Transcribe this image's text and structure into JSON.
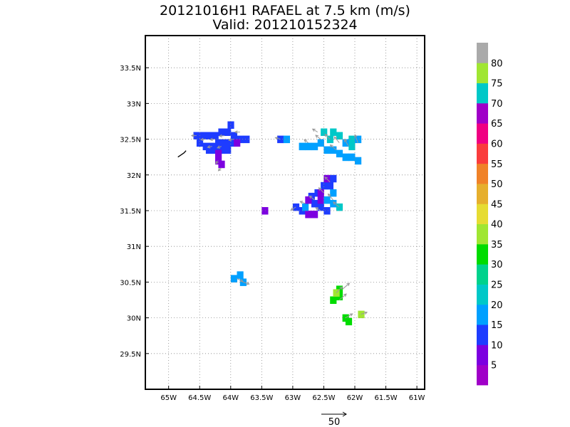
{
  "title": "20121016H1 RAFAEL at 7.5 km (m/s)",
  "subtitle": "Valid: 201210152324",
  "reference_vector": {
    "label": "50",
    "value": 50
  },
  "chart_data": {
    "type": "heatmap",
    "title": "20121016H1 RAFAEL at 7.5 km (m/s)",
    "subtitle": "Valid: 201210152324",
    "xlabel": "",
    "ylabel": "",
    "xlim": [
      -65.375,
      -60.875
    ],
    "ylim": [
      29.0,
      33.95
    ],
    "grid": true,
    "x_ticks": [
      {
        "v": -65.0,
        "label": "65W"
      },
      {
        "v": -64.5,
        "label": "64.5W"
      },
      {
        "v": -64.0,
        "label": "64W"
      },
      {
        "v": -63.5,
        "label": "63.5W"
      },
      {
        "v": -63.0,
        "label": "63W"
      },
      {
        "v": -62.5,
        "label": "62.5W"
      },
      {
        "v": -62.0,
        "label": "62W"
      },
      {
        "v": -61.5,
        "label": "61.5W"
      },
      {
        "v": -61.0,
        "label": "61W"
      }
    ],
    "y_ticks": [
      {
        "v": 29.5,
        "label": "29.5N"
      },
      {
        "v": 30.0,
        "label": "30N"
      },
      {
        "v": 30.5,
        "label": "30.5N"
      },
      {
        "v": 31.0,
        "label": "31N"
      },
      {
        "v": 31.5,
        "label": "31.5N"
      },
      {
        "v": 32.0,
        "label": "32N"
      },
      {
        "v": 32.5,
        "label": "32.5N"
      },
      {
        "v": 33.0,
        "label": "33N"
      },
      {
        "v": 33.5,
        "label": "33.5N"
      }
    ],
    "colorbar": {
      "labels": [
        "5",
        "10",
        "15",
        "20",
        "25",
        "30",
        "35",
        "40",
        "45",
        "50",
        "55",
        "60",
        "65",
        "70",
        "75",
        "80"
      ],
      "colors": [
        "#a000c8",
        "#7c00e0",
        "#1e3cff",
        "#00a0ff",
        "#00c8c8",
        "#00d28c",
        "#00dc00",
        "#a0e632",
        "#e6dc32",
        "#e6af2d",
        "#f08228",
        "#fa3c3c",
        "#f00082",
        "#a000c8",
        "#00c8c8",
        "#a0e632",
        "#aaaaaa"
      ]
    },
    "cells": [
      {
        "lon": -64.55,
        "lat": 32.55,
        "v": 15
      },
      {
        "lon": -64.45,
        "lat": 32.55,
        "v": 15
      },
      {
        "lon": -64.35,
        "lat": 32.55,
        "v": 15
      },
      {
        "lon": -64.25,
        "lat": 32.55,
        "v": 15
      },
      {
        "lon": -64.15,
        "lat": 32.6,
        "v": 15
      },
      {
        "lon": -64.05,
        "lat": 32.6,
        "v": 15
      },
      {
        "lon": -63.95,
        "lat": 32.55,
        "v": 15
      },
      {
        "lon": -63.85,
        "lat": 32.5,
        "v": 15
      },
      {
        "lon": -63.75,
        "lat": 32.5,
        "v": 15
      },
      {
        "lon": -64.5,
        "lat": 32.45,
        "v": 15
      },
      {
        "lon": -64.4,
        "lat": 32.4,
        "v": 15
      },
      {
        "lon": -64.3,
        "lat": 32.4,
        "v": 15
      },
      {
        "lon": -64.2,
        "lat": 32.45,
        "v": 15
      },
      {
        "lon": -64.1,
        "lat": 32.45,
        "v": 15
      },
      {
        "lon": -64.0,
        "lat": 32.45,
        "v": 15
      },
      {
        "lon": -63.9,
        "lat": 32.45,
        "v": 10
      },
      {
        "lon": -64.35,
        "lat": 32.35,
        "v": 15
      },
      {
        "lon": -64.25,
        "lat": 32.35,
        "v": 15
      },
      {
        "lon": -64.15,
        "lat": 32.35,
        "v": 15
      },
      {
        "lon": -64.05,
        "lat": 32.35,
        "v": 15
      },
      {
        "lon": -64.0,
        "lat": 32.7,
        "v": 15
      },
      {
        "lon": -64.2,
        "lat": 32.3,
        "v": 10
      },
      {
        "lon": -64.2,
        "lat": 32.2,
        "v": 10
      },
      {
        "lon": -64.15,
        "lat": 32.15,
        "v": 10
      },
      {
        "lon": -63.2,
        "lat": 32.5,
        "v": 15
      },
      {
        "lon": -63.1,
        "lat": 32.5,
        "v": 20
      },
      {
        "lon": -62.85,
        "lat": 32.4,
        "v": 20
      },
      {
        "lon": -62.75,
        "lat": 32.4,
        "v": 20
      },
      {
        "lon": -62.65,
        "lat": 32.4,
        "v": 20
      },
      {
        "lon": -62.55,
        "lat": 32.45,
        "v": 20
      },
      {
        "lon": -62.45,
        "lat": 32.35,
        "v": 20
      },
      {
        "lon": -62.35,
        "lat": 32.35,
        "v": 20
      },
      {
        "lon": -62.25,
        "lat": 32.3,
        "v": 20
      },
      {
        "lon": -62.15,
        "lat": 32.25,
        "v": 20
      },
      {
        "lon": -62.05,
        "lat": 32.25,
        "v": 20
      },
      {
        "lon": -61.95,
        "lat": 32.2,
        "v": 20
      },
      {
        "lon": -62.5,
        "lat": 32.6,
        "v": 25
      },
      {
        "lon": -62.35,
        "lat": 32.6,
        "v": 25
      },
      {
        "lon": -62.25,
        "lat": 32.55,
        "v": 25
      },
      {
        "lon": -62.4,
        "lat": 32.5,
        "v": 25
      },
      {
        "lon": -62.05,
        "lat": 32.4,
        "v": 25
      },
      {
        "lon": -62.05,
        "lat": 32.5,
        "v": 25
      },
      {
        "lon": -61.95,
        "lat": 32.5,
        "v": 20
      },
      {
        "lon": -62.15,
        "lat": 32.45,
        "v": 20
      },
      {
        "lon": -63.45,
        "lat": 31.5,
        "v": 10
      },
      {
        "lon": -62.95,
        "lat": 31.55,
        "v": 15
      },
      {
        "lon": -62.85,
        "lat": 31.5,
        "v": 15
      },
      {
        "lon": -62.75,
        "lat": 31.45,
        "v": 10
      },
      {
        "lon": -62.65,
        "lat": 31.45,
        "v": 10
      },
      {
        "lon": -62.55,
        "lat": 31.55,
        "v": 15
      },
      {
        "lon": -62.45,
        "lat": 31.5,
        "v": 15
      },
      {
        "lon": -62.65,
        "lat": 31.6,
        "v": 15
      },
      {
        "lon": -62.7,
        "lat": 31.7,
        "v": 15
      },
      {
        "lon": -62.6,
        "lat": 31.75,
        "v": 15
      },
      {
        "lon": -62.5,
        "lat": 31.85,
        "v": 15
      },
      {
        "lon": -62.4,
        "lat": 31.85,
        "v": 15
      },
      {
        "lon": -62.55,
        "lat": 31.65,
        "v": 10
      },
      {
        "lon": -62.45,
        "lat": 31.65,
        "v": 20
      },
      {
        "lon": -62.35,
        "lat": 31.6,
        "v": 20
      },
      {
        "lon": -62.25,
        "lat": 31.55,
        "v": 25
      },
      {
        "lon": -62.35,
        "lat": 31.75,
        "v": 20
      },
      {
        "lon": -62.45,
        "lat": 31.95,
        "v": 10
      },
      {
        "lon": -62.35,
        "lat": 31.95,
        "v": 15
      },
      {
        "lon": -62.55,
        "lat": 31.75,
        "v": 10
      },
      {
        "lon": -62.8,
        "lat": 31.55,
        "v": 20
      },
      {
        "lon": -62.75,
        "lat": 31.65,
        "v": 10
      },
      {
        "lon": -63.95,
        "lat": 30.55,
        "v": 20
      },
      {
        "lon": -63.85,
        "lat": 30.6,
        "v": 20
      },
      {
        "lon": -63.8,
        "lat": 30.5,
        "v": 20
      },
      {
        "lon": -62.35,
        "lat": 30.25,
        "v": 35
      },
      {
        "lon": -62.25,
        "lat": 30.3,
        "v": 35
      },
      {
        "lon": -62.25,
        "lat": 30.4,
        "v": 35
      },
      {
        "lon": -62.3,
        "lat": 30.35,
        "v": 40
      },
      {
        "lon": -62.1,
        "lat": 29.95,
        "v": 35
      },
      {
        "lon": -62.15,
        "lat": 30.0,
        "v": 35
      },
      {
        "lon": -61.9,
        "lat": 30.05,
        "v": 40
      }
    ],
    "vectors": [
      {
        "lon": -64.55,
        "lat": 32.55,
        "u": -10,
        "v": 0
      },
      {
        "lon": -64.4,
        "lat": 32.5,
        "u": -10,
        "v": -1
      },
      {
        "lon": -64.25,
        "lat": 32.5,
        "u": -10,
        "v": -1
      },
      {
        "lon": -64.1,
        "lat": 32.55,
        "u": -10,
        "v": -1
      },
      {
        "lon": -63.95,
        "lat": 32.5,
        "u": -10,
        "v": -2
      },
      {
        "lon": -63.85,
        "lat": 32.6,
        "u": -10,
        "v": 0
      },
      {
        "lon": -64.3,
        "lat": 32.4,
        "u": -9,
        "v": -2
      },
      {
        "lon": -64.15,
        "lat": 32.4,
        "u": -8,
        "v": -3
      },
      {
        "lon": -64.2,
        "lat": 32.2,
        "u": -5,
        "v": -6
      },
      {
        "lon": -64.15,
        "lat": 32.1,
        "u": -6,
        "v": -6
      },
      {
        "lon": -63.2,
        "lat": 32.5,
        "u": -10,
        "v": 3
      },
      {
        "lon": -62.75,
        "lat": 32.45,
        "u": -8,
        "v": 6
      },
      {
        "lon": -62.55,
        "lat": 32.5,
        "u": -10,
        "v": 8
      },
      {
        "lon": -62.4,
        "lat": 32.5,
        "u": -10,
        "v": 10
      },
      {
        "lon": -62.25,
        "lat": 32.45,
        "u": -10,
        "v": 12
      },
      {
        "lon": -62.1,
        "lat": 32.4,
        "u": -8,
        "v": 14
      },
      {
        "lon": -61.95,
        "lat": 32.45,
        "u": -6,
        "v": 16
      },
      {
        "lon": -62.6,
        "lat": 32.6,
        "u": -10,
        "v": 6
      },
      {
        "lon": -62.3,
        "lat": 32.35,
        "u": -12,
        "v": 10
      },
      {
        "lon": -62.95,
        "lat": 31.55,
        "u": -10,
        "v": -6
      },
      {
        "lon": -62.8,
        "lat": 31.6,
        "u": -10,
        "v": 4
      },
      {
        "lon": -62.65,
        "lat": 31.65,
        "u": -10,
        "v": 8
      },
      {
        "lon": -62.5,
        "lat": 31.75,
        "u": -10,
        "v": 10
      },
      {
        "lon": -62.4,
        "lat": 31.9,
        "u": -10,
        "v": 10
      },
      {
        "lon": -62.35,
        "lat": 31.65,
        "u": -10,
        "v": 12
      },
      {
        "lon": -62.25,
        "lat": 31.55,
        "u": -12,
        "v": 10
      },
      {
        "lon": -62.55,
        "lat": 31.5,
        "u": -10,
        "v": 6
      },
      {
        "lon": -63.9,
        "lat": 30.55,
        "u": 12,
        "v": -6
      },
      {
        "lon": -63.8,
        "lat": 30.5,
        "u": 12,
        "v": -4
      },
      {
        "lon": -62.3,
        "lat": 30.35,
        "u": 12,
        "v": 12
      },
      {
        "lon": -62.2,
        "lat": 30.4,
        "u": 14,
        "v": 12
      },
      {
        "lon": -62.25,
        "lat": 30.25,
        "u": 14,
        "v": 12
      },
      {
        "lon": -62.15,
        "lat": 30.0,
        "u": 14,
        "v": 8
      },
      {
        "lon": -61.9,
        "lat": 30.05,
        "u": 12,
        "v": 4
      }
    ],
    "coastline": [
      [
        -64.85,
        32.25
      ],
      [
        -64.8,
        32.28
      ],
      [
        -64.75,
        32.31
      ],
      [
        -64.72,
        32.34
      ]
    ]
  }
}
